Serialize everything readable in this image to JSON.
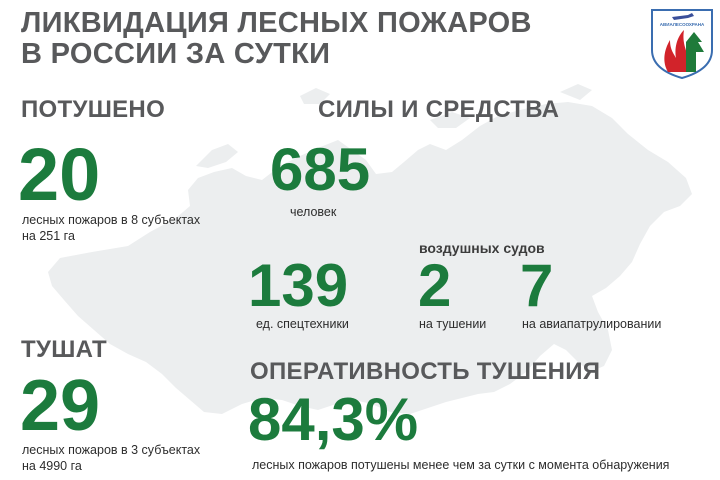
{
  "header": {
    "title_line1": "ЛИКВИДАЦИЯ ЛЕСНЫХ ПОЖАРОВ",
    "title_line2": "В РОССИИ ЗА СУТКИ"
  },
  "logo": {
    "text": "АВИАЛЕСООХРАНА",
    "icon": "avialesookhrana-emblem"
  },
  "extinguished": {
    "heading": "ПОТУШЕНО",
    "value": "20",
    "caption_line1": "лесных пожаров в 8 субъектах",
    "caption_line2": "на 251 га"
  },
  "forces": {
    "heading": "СИЛЫ И СРЕДСТВА",
    "people_value": "685",
    "people_caption": "человек",
    "equipment_value": "139",
    "equipment_caption": "ед. спецтехники",
    "aircraft_heading": "воздушных судов",
    "air_fighting_value": "2",
    "air_fighting_caption": "на тушении",
    "air_patrol_value": "7",
    "air_patrol_caption": "на авиапатрулировании"
  },
  "fighting": {
    "heading": "ТУШАТ",
    "value": "29",
    "caption_line1": "лесных пожаров в 3 субъектах",
    "caption_line2": "на 4990 га"
  },
  "efficiency": {
    "heading": "ОПЕРАТИВНОСТЬ ТУШЕНИЯ",
    "value": "84,3%",
    "caption": "лесных пожаров потушены  менее чем за сутки  с момента обнаружения"
  },
  "colors": {
    "accent_green": "#1c7b3d",
    "heading_gray": "#58595b",
    "map_fill": "#eceeef",
    "logo_red": "#d2232a"
  }
}
